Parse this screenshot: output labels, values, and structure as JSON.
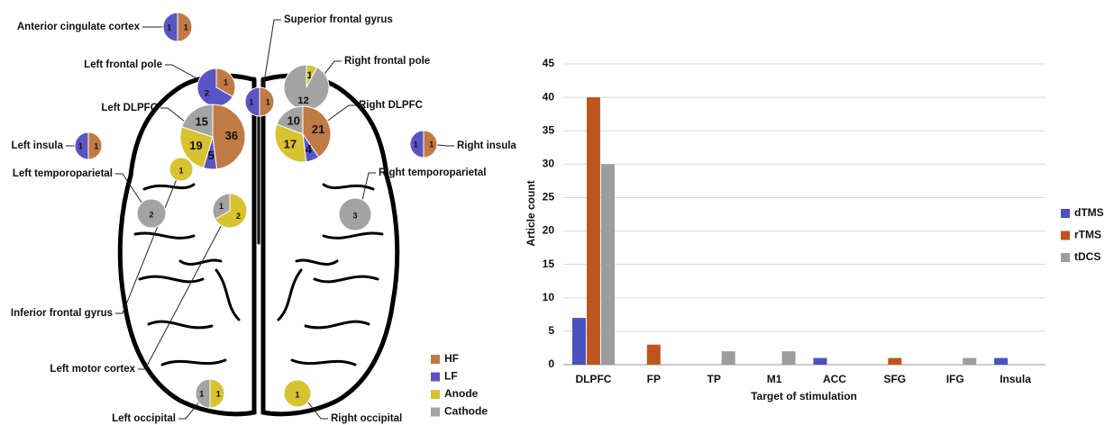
{
  "brain_map": {
    "legend": [
      {
        "name": "HF",
        "color": "#c07a45"
      },
      {
        "name": "LF",
        "color": "#5a55c4"
      },
      {
        "name": "Anode",
        "color": "#d8c230"
      },
      {
        "name": "Cathode",
        "color": "#a3a3a3"
      }
    ],
    "regions": [
      {
        "label": "Anterior cingulate cortex",
        "values": [
          1,
          1,
          null,
          null
        ]
      },
      {
        "label": "Superior frontal gyrus",
        "values": [
          1,
          1,
          null,
          null
        ]
      },
      {
        "label": "Left frontal pole",
        "values": [
          1,
          2,
          null,
          null
        ]
      },
      {
        "label": "Right frontal pole",
        "values": [
          null,
          null,
          1,
          12
        ]
      },
      {
        "label": "Left DLPFC",
        "values": [
          36,
          5,
          19,
          15
        ]
      },
      {
        "label": "Right DLPFC",
        "values": [
          21,
          4,
          17,
          10
        ]
      },
      {
        "label": "Left insula",
        "values": [
          1,
          1,
          null,
          null
        ]
      },
      {
        "label": "Right insula",
        "values": [
          1,
          1,
          null,
          null
        ]
      },
      {
        "label": "Left temporoparietal",
        "values": [
          null,
          null,
          null,
          2
        ]
      },
      {
        "label": "Right temporoparietal",
        "values": [
          null,
          null,
          null,
          3
        ]
      },
      {
        "label": "Inferior frontal gyrus",
        "values": [
          null,
          null,
          1,
          null
        ]
      },
      {
        "label": "Left motor cortex",
        "values": [
          null,
          null,
          2,
          1
        ]
      },
      {
        "label": "Left occipital",
        "values": [
          null,
          null,
          1,
          1
        ]
      },
      {
        "label": "Right occipital",
        "values": [
          null,
          null,
          1,
          null
        ]
      }
    ]
  },
  "chart_data": {
    "type": "bar",
    "xlabel": "Target of stimulation",
    "ylabel": "Article count",
    "categories": [
      "DLPFC",
      "FP",
      "TP",
      "M1",
      "ACC",
      "SFG",
      "IFG",
      "Insula"
    ],
    "series": [
      {
        "name": "dTMS",
        "color": "#4a52c0",
        "values": [
          7,
          null,
          null,
          null,
          1,
          null,
          null,
          1
        ]
      },
      {
        "name": "rTMS",
        "color": "#c0541f",
        "values": [
          40,
          3,
          null,
          null,
          null,
          1,
          null,
          null
        ]
      },
      {
        "name": "tDCS",
        "color": "#9d9d9d",
        "values": [
          30,
          null,
          2,
          2,
          null,
          null,
          1,
          null
        ]
      }
    ],
    "ylim": [
      0,
      45
    ],
    "yticks": [
      0,
      5,
      10,
      15,
      20,
      25,
      30,
      35,
      40,
      45
    ],
    "grid": true,
    "legend": "right"
  }
}
